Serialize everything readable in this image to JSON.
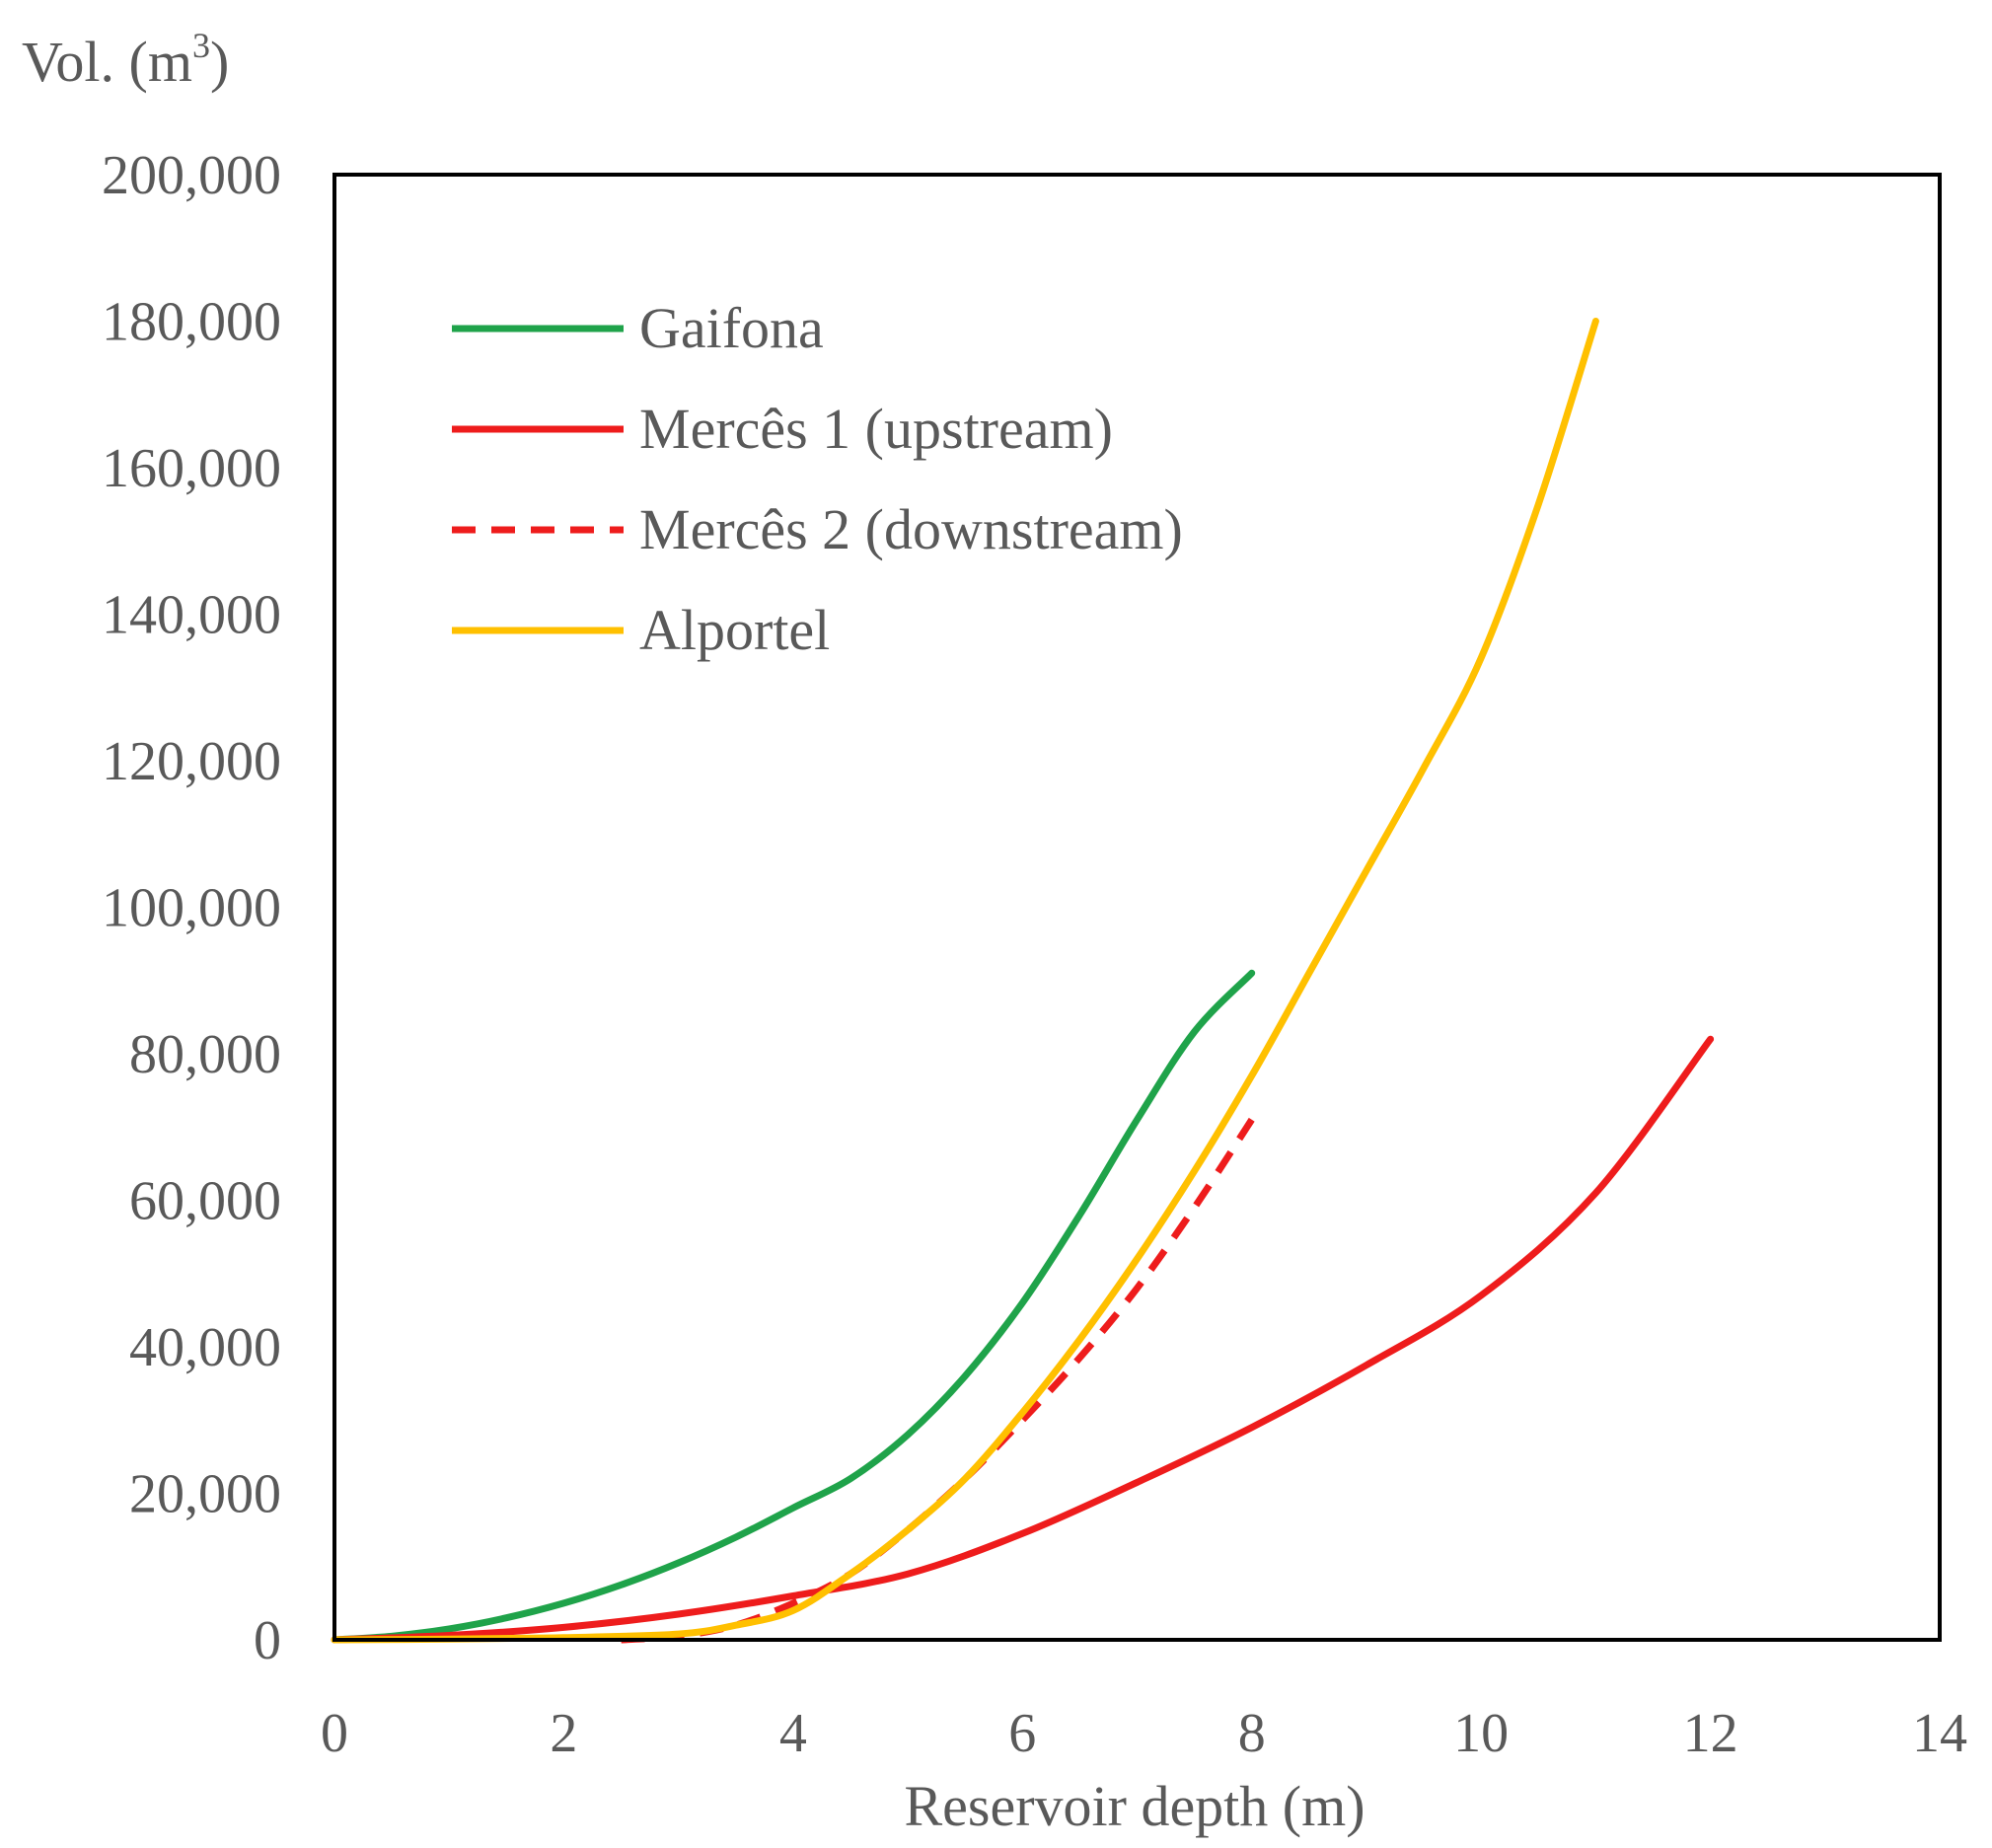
{
  "chart_data": {
    "type": "line",
    "title": "",
    "xlabel": "Reservoir depth (m)",
    "ylabel": {
      "prefix": "Vol. (m",
      "superscript": "3",
      "suffix": ")"
    },
    "xlim": [
      0,
      14
    ],
    "ylim": [
      0,
      200000
    ],
    "x_ticks": [
      0,
      2,
      4,
      6,
      8,
      10,
      12,
      14
    ],
    "y_ticks": [
      0,
      20000,
      40000,
      60000,
      80000,
      100000,
      120000,
      140000,
      160000,
      180000,
      200000
    ],
    "x_tick_labels": [
      "0",
      "2",
      "4",
      "6",
      "8",
      "10",
      "12",
      "14"
    ],
    "y_tick_labels": [
      "0",
      "20,000",
      "40,000",
      "60,000",
      "80,000",
      "100,000",
      "120,000",
      "140,000",
      "160,000",
      "180,000",
      "200,000"
    ],
    "grid": false,
    "legend_position": "top-left",
    "series": [
      {
        "name": "Gaifona",
        "color": "#1fa34a",
        "dash": "solid",
        "x": [
          0,
          0.5,
          1,
          1.5,
          2,
          2.5,
          3,
          3.5,
          4,
          4.5,
          5,
          5.5,
          6,
          6.5,
          7,
          7.5,
          8
        ],
        "y": [
          0,
          500,
          1500,
          3000,
          5000,
          7500,
          10500,
          14000,
          18000,
          22000,
          28000,
          36000,
          46000,
          58000,
          71000,
          83000,
          91000
        ]
      },
      {
        "name": "Mercês 1 (upstream)",
        "color": "#ee1c1c",
        "dash": "solid",
        "x": [
          0,
          1,
          2,
          3,
          4,
          5,
          6,
          7,
          8,
          9,
          10,
          11,
          12
        ],
        "y": [
          0,
          600,
          1700,
          3500,
          6000,
          9000,
          14500,
          21500,
          29000,
          37500,
          47000,
          61000,
          82000
        ]
      },
      {
        "name": "Mercês 2 (downstream)",
        "color": "#ee1c1c",
        "dash": "dashed",
        "x": [
          2.5,
          3,
          3.5,
          4,
          4.5,
          5,
          5.5,
          6,
          6.5,
          7,
          7.5,
          8
        ],
        "y": [
          0,
          500,
          2000,
          5000,
          9000,
          15000,
          22000,
          30000,
          38500,
          48000,
          59000,
          71000
        ]
      },
      {
        "name": "Alportel",
        "color": "#ffc000",
        "dash": "solid",
        "x": [
          0,
          1,
          2,
          3,
          3.5,
          4,
          4.5,
          5,
          5.5,
          6,
          6.5,
          7,
          7.5,
          8,
          8.5,
          9,
          9.5,
          10,
          10.5,
          11
        ],
        "y": [
          0,
          100,
          300,
          800,
          2000,
          4000,
          9000,
          15000,
          22000,
          31000,
          41000,
          52000,
          64000,
          77000,
          91000,
          105000,
          119000,
          134000,
          155000,
          180000
        ]
      }
    ]
  }
}
